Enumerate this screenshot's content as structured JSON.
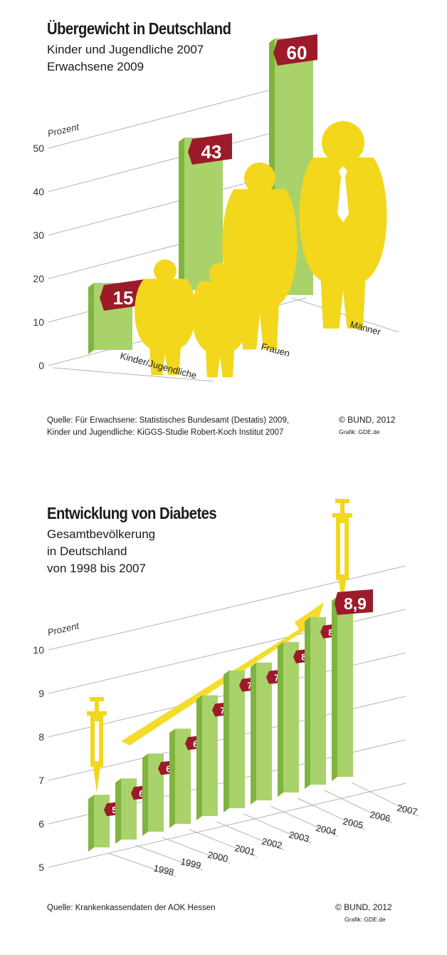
{
  "colors": {
    "bar_front": "#a9d26a",
    "bar_side": "#7fb43e",
    "bar_top": "#d8eab0",
    "label_bg": "#9b1b2b",
    "figure_yellow": "#f2d71d",
    "arrow_yellow": "#f5dc2a",
    "grid": "#b5b5b5"
  },
  "icons": [
    "person-silhouette-icon",
    "syringe-icon",
    "trend-arrow-icon"
  ],
  "chart1": {
    "title": "Übergewicht in Deutschland",
    "subtitle_lines": [
      "Kinder und Jugendliche 2007",
      "Erwachsene 2009"
    ],
    "source_lines": [
      "Quelle: Für Erwachsene: Statistisches Bundesamt (Destatis) 2009,",
      "Kinder und Jugendliche: KiGGS-Studie Robert-Koch Institut 2007"
    ],
    "copyright": "© BUND, 2012",
    "grafik": "Grafik: GDE.de"
  },
  "chart2": {
    "title": "Entwicklung von Diabetes",
    "subtitle_lines": [
      "Gesamtbevölkerung",
      "in Deutschland",
      "von 1998 bis 2007"
    ],
    "source": "Quelle: Krankenkassendaten der AOK Hessen",
    "copyright": "© BUND, 2012",
    "grafik": "Grafik: GDE.de"
  },
  "chart_data": [
    {
      "type": "bar",
      "title": "Übergewicht in Deutschland",
      "ylabel": "Prozent",
      "ylim": [
        0,
        60
      ],
      "yticks": [
        0,
        10,
        20,
        30,
        40,
        50
      ],
      "categories": [
        "Kinder/Jugendliche",
        "Frauen",
        "Männer"
      ],
      "values": [
        15,
        43,
        60
      ],
      "value_labels": [
        "15",
        "43",
        "60"
      ],
      "grid": true
    },
    {
      "type": "bar",
      "title": "Entwicklung von Diabetes",
      "ylabel": "Prozent",
      "ylim": [
        5,
        10
      ],
      "yticks": [
        5,
        6,
        7,
        8,
        9,
        10
      ],
      "categories": [
        "1998",
        "1999",
        "2000",
        "2001",
        "2002",
        "2003",
        "2004",
        "2005",
        "2006",
        "2007"
      ],
      "values": [
        5.9,
        6.1,
        6.5,
        6.9,
        7.5,
        7.9,
        7.9,
        8.2,
        8.6,
        8.9
      ],
      "value_labels": [
        "5,9",
        "6,1",
        "6,5",
        "6,9",
        "7,5",
        "7,9",
        "7,9",
        "8,2",
        "8,6",
        "8,9"
      ],
      "grid": true
    }
  ]
}
